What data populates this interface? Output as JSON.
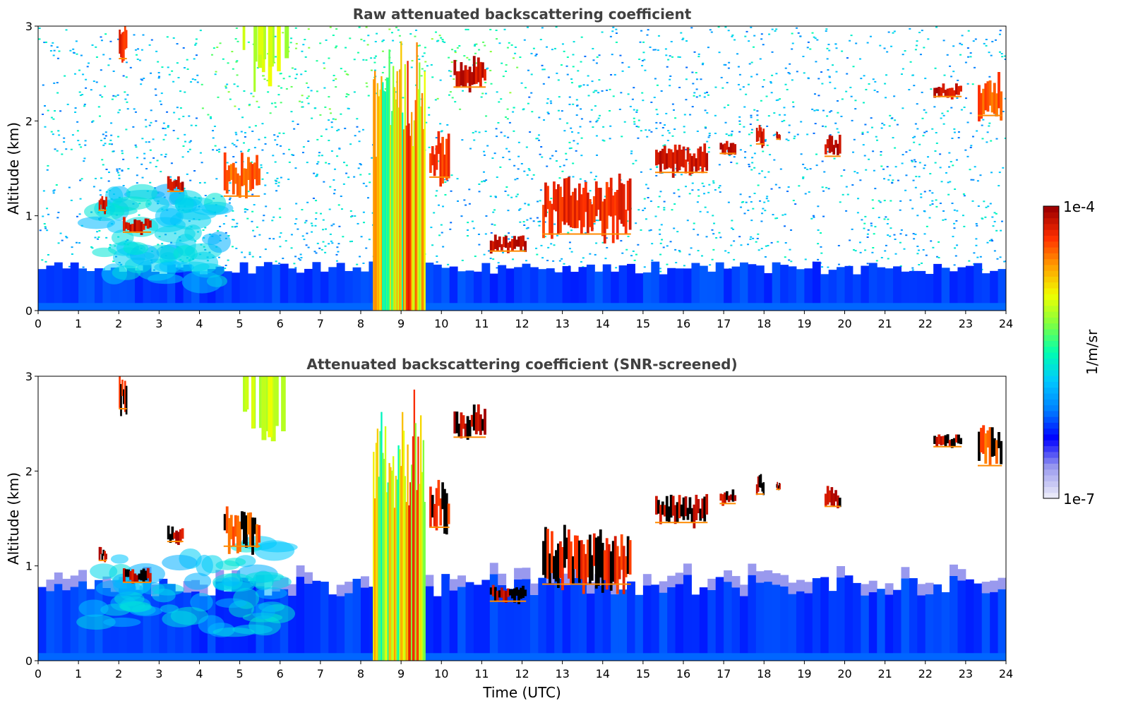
{
  "chart_data": [
    {
      "type": "heatmap",
      "title": "Raw attenuated backscattering coefficient",
      "xlabel": "",
      "ylabel": "Altitude (km)",
      "xlim": [
        0,
        24
      ],
      "ylim": [
        0,
        3
      ],
      "xticks": [
        "0",
        "1",
        "2",
        "3",
        "4",
        "5",
        "6",
        "7",
        "8",
        "9",
        "10",
        "11",
        "12",
        "13",
        "14",
        "15",
        "16",
        "17",
        "18",
        "19",
        "20",
        "21",
        "22",
        "23",
        "24"
      ],
      "yticks": [
        "0",
        "1",
        "2",
        "3"
      ],
      "screened": false,
      "boundary_layer_top_km": 0.45,
      "features": [
        {
          "kind": "haze",
          "x": [
            1.4,
            4.5
          ],
          "y": [
            0.3,
            1.25
          ],
          "level": 0.42
        },
        {
          "kind": "smoke_column",
          "x": [
            8.3,
            9.6
          ],
          "y": [
            0,
            2.9
          ],
          "level": 0.72
        },
        {
          "kind": "cloud",
          "x": [
            1.5,
            1.7
          ],
          "y": [
            1.05,
            1.2
          ],
          "level": 1.0
        },
        {
          "kind": "cloud",
          "x": [
            2.1,
            2.8
          ],
          "y": [
            0.82,
            0.98
          ],
          "level": 1.0
        },
        {
          "kind": "cloud",
          "x": [
            3.2,
            3.6
          ],
          "y": [
            1.25,
            1.4
          ],
          "level": 1.0
        },
        {
          "kind": "cloud",
          "x": [
            4.6,
            5.5
          ],
          "y": [
            1.2,
            1.6
          ],
          "level": 0.9
        },
        {
          "kind": "cloud",
          "x": [
            11.2,
            12.1
          ],
          "y": [
            0.62,
            0.78
          ],
          "level": 1.0
        },
        {
          "kind": "cloud",
          "x": [
            12.5,
            14.7
          ],
          "y": [
            0.8,
            1.35
          ],
          "level": 0.95
        },
        {
          "kind": "cloud",
          "x": [
            15.3,
            16.6
          ],
          "y": [
            1.45,
            1.72
          ],
          "level": 1.0
        },
        {
          "kind": "cloud",
          "x": [
            16.9,
            17.3
          ],
          "y": [
            1.65,
            1.78
          ],
          "level": 1.0
        },
        {
          "kind": "cloud",
          "x": [
            17.8,
            18.0
          ],
          "y": [
            1.75,
            1.95
          ],
          "level": 1.0
        },
        {
          "kind": "cloud",
          "x": [
            18.3,
            18.4
          ],
          "y": [
            1.8,
            1.88
          ],
          "level": 1.0
        },
        {
          "kind": "cloud",
          "x": [
            19.5,
            19.9
          ],
          "y": [
            1.62,
            1.82
          ],
          "level": 1.0
        },
        {
          "kind": "cloud",
          "x": [
            22.2,
            22.9
          ],
          "y": [
            2.25,
            2.38
          ],
          "level": 1.0
        },
        {
          "kind": "cloud",
          "x": [
            23.3,
            23.9
          ],
          "y": [
            2.05,
            2.45
          ],
          "level": 0.9
        },
        {
          "kind": "cloud",
          "x": [
            10.3,
            11.1
          ],
          "y": [
            2.35,
            2.65
          ],
          "level": 1.0
        },
        {
          "kind": "cloud",
          "x": [
            9.7,
            10.2
          ],
          "y": [
            1.4,
            1.9
          ],
          "level": 0.95
        },
        {
          "kind": "cloud",
          "x": [
            2.0,
            2.2
          ],
          "y": [
            2.65,
            3.0
          ],
          "level": 0.95
        },
        {
          "kind": "virga",
          "x": [
            5.0,
            6.2
          ],
          "y": [
            2.3,
            3.0
          ],
          "level": 0.62
        }
      ]
    },
    {
      "type": "heatmap",
      "title": "Attenuated backscattering coefficient (SNR-screened)",
      "xlabel": "Time (UTC)",
      "ylabel": "Altitude (km)",
      "xlim": [
        0,
        24
      ],
      "ylim": [
        0,
        3
      ],
      "xticks": [
        "0",
        "1",
        "2",
        "3",
        "4",
        "5",
        "6",
        "7",
        "8",
        "9",
        "10",
        "11",
        "12",
        "13",
        "14",
        "15",
        "16",
        "17",
        "18",
        "19",
        "20",
        "21",
        "22",
        "23",
        "24"
      ],
      "yticks": [
        "0",
        "1",
        "2",
        "3"
      ],
      "screened": true,
      "boundary_layer_top_km": 0.8,
      "features": [
        {
          "kind": "haze",
          "x": [
            1.3,
            6.0
          ],
          "y": [
            0.3,
            1.25
          ],
          "level": 0.42
        },
        {
          "kind": "smoke_column",
          "x": [
            8.3,
            9.6
          ],
          "y": [
            0,
            2.9
          ],
          "level": 0.72
        },
        {
          "kind": "cloud",
          "x": [
            1.5,
            1.7
          ],
          "y": [
            1.05,
            1.2
          ],
          "level": 1.0
        },
        {
          "kind": "cloud",
          "x": [
            2.1,
            2.8
          ],
          "y": [
            0.82,
            0.98
          ],
          "level": 1.0
        },
        {
          "kind": "cloud",
          "x": [
            3.2,
            3.6
          ],
          "y": [
            1.25,
            1.4
          ],
          "level": 1.0
        },
        {
          "kind": "cloud",
          "x": [
            4.6,
            5.5
          ],
          "y": [
            1.2,
            1.6
          ],
          "level": 0.9
        },
        {
          "kind": "cloud",
          "x": [
            11.2,
            12.1
          ],
          "y": [
            0.62,
            0.78
          ],
          "level": 1.0
        },
        {
          "kind": "cloud",
          "x": [
            12.5,
            14.7
          ],
          "y": [
            0.8,
            1.35
          ],
          "level": 0.95
        },
        {
          "kind": "cloud",
          "x": [
            15.3,
            16.6
          ],
          "y": [
            1.45,
            1.72
          ],
          "level": 1.0
        },
        {
          "kind": "cloud",
          "x": [
            16.9,
            17.3
          ],
          "y": [
            1.65,
            1.78
          ],
          "level": 1.0
        },
        {
          "kind": "cloud",
          "x": [
            17.8,
            18.0
          ],
          "y": [
            1.75,
            1.95
          ],
          "level": 1.0
        },
        {
          "kind": "cloud",
          "x": [
            18.3,
            18.4
          ],
          "y": [
            1.8,
            1.88
          ],
          "level": 1.0
        },
        {
          "kind": "cloud",
          "x": [
            19.5,
            19.9
          ],
          "y": [
            1.62,
            1.82
          ],
          "level": 1.0
        },
        {
          "kind": "cloud",
          "x": [
            22.2,
            22.9
          ],
          "y": [
            2.25,
            2.38
          ],
          "level": 1.0
        },
        {
          "kind": "cloud",
          "x": [
            23.3,
            23.9
          ],
          "y": [
            2.05,
            2.45
          ],
          "level": 0.9
        },
        {
          "kind": "cloud",
          "x": [
            10.3,
            11.1
          ],
          "y": [
            2.35,
            2.65
          ],
          "level": 1.0
        },
        {
          "kind": "cloud",
          "x": [
            9.7,
            10.2
          ],
          "y": [
            1.4,
            1.9
          ],
          "level": 0.95
        },
        {
          "kind": "cloud",
          "x": [
            2.0,
            2.2
          ],
          "y": [
            2.65,
            3.0
          ],
          "level": 0.95
        },
        {
          "kind": "virga",
          "x": [
            5.0,
            6.2
          ],
          "y": [
            2.3,
            3.0
          ],
          "level": 0.62
        }
      ]
    }
  ],
  "colorbar": {
    "label": "1/m/sr",
    "min_label": "1e-7",
    "max_label": "1e-4",
    "scale": "log",
    "colors": [
      "#e8e8f8",
      "#9999ee",
      "#0000ff",
      "#0080ff",
      "#00c8ff",
      "#00ffb0",
      "#80ff40",
      "#f0ff00",
      "#ffa000",
      "#ff3000",
      "#a00000"
    ]
  }
}
